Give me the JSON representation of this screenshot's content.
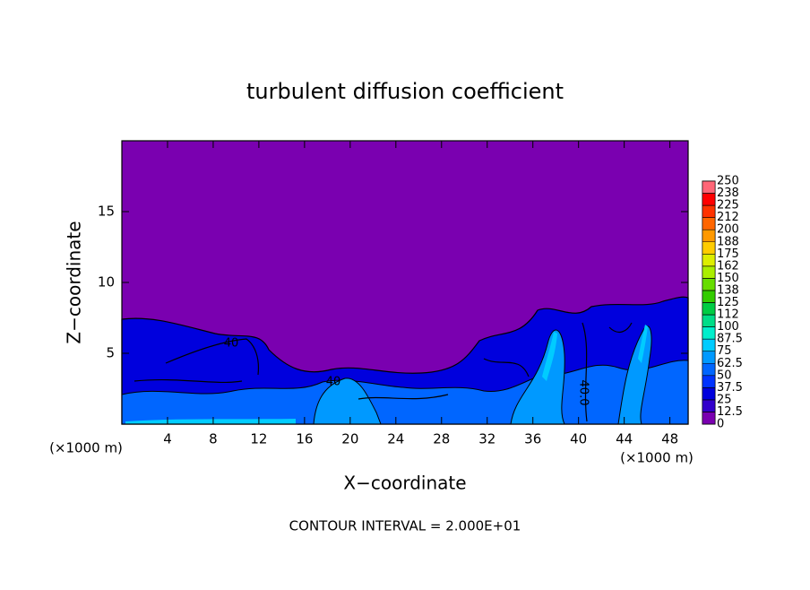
{
  "chart_data": {
    "type": "contour",
    "title": "turbulent diffusion coefficient",
    "xlabel": "X−coordinate",
    "ylabel": "Z−coordinate",
    "x_unit": "(×1000 m)",
    "x_unit_right": "(×1000 m)",
    "footnote": "CONTOUR INTERVAL = 2.000E+01",
    "annotations": [
      "40",
      "40",
      "40.0"
    ],
    "xlim": [
      0,
      49.6
    ],
    "ylim": [
      0,
      20
    ],
    "xticks": [
      4,
      8,
      12,
      16,
      20,
      24,
      28,
      32,
      36,
      40,
      44,
      48
    ],
    "yticks": [
      5,
      10,
      15
    ],
    "colorbar": {
      "levels": [
        0,
        12.5,
        25,
        37.5,
        50,
        62.5,
        75,
        87.5,
        100,
        {
          "value": 112.5,
          "label": "112"
        },
        125,
        {
          "value": 137.5,
          "label": "138"
        },
        150,
        {
          "value": 162.5,
          "label": "162"
        },
        175,
        {
          "value": 187.5,
          "label": "188"
        },
        200,
        {
          "value": 212.5,
          "label": "212"
        },
        225,
        {
          "value": 237.5,
          "label": "238"
        },
        250
      ],
      "colors": [
        "#7a00b0",
        "#3300cc",
        "#0000dd",
        "#0033ff",
        "#0066ff",
        "#0099ff",
        "#00ccff",
        "#00eecc",
        "#00dd88",
        "#00cc44",
        "#33cc00",
        "#66dd00",
        "#aaee00",
        "#ddee00",
        "#ffcc00",
        "#ff9900",
        "#ff6600",
        "#ff3300",
        "#ff0000",
        "#ff6677"
      ]
    }
  }
}
